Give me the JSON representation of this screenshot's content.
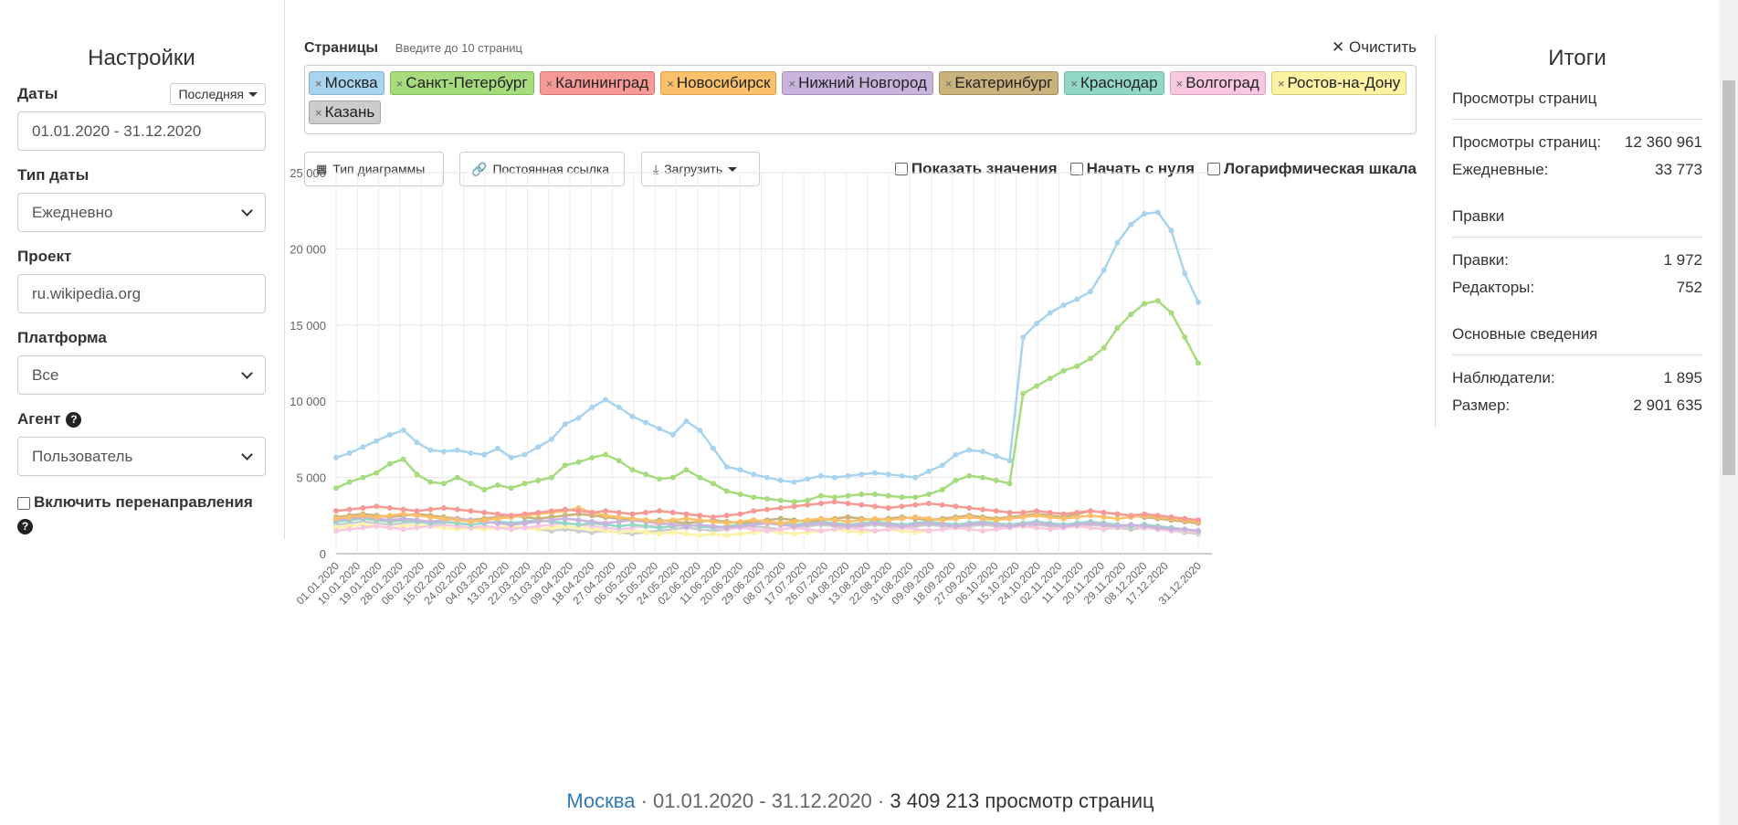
{
  "settings": {
    "title": "Настройки",
    "dates_label": "Даты",
    "dates_preset": "Последняя",
    "dates_value": "01.01.2020 - 31.12.2020",
    "date_type_label": "Тип даты",
    "date_type_value": "Ежедневно",
    "project_label": "Проект",
    "project_value": "ru.wikipedia.org",
    "platform_label": "Платформа",
    "platform_value": "Все",
    "agent_label": "Агент",
    "agent_value": "Пользователь",
    "redirects_label": "Включить перенаправления"
  },
  "pages": {
    "title": "Страницы",
    "hint": "Введите до 10 страниц",
    "clear_label": "Очистить",
    "chips": [
      {
        "label": "Москва",
        "color": "#a8d4ef",
        "border": "#7fb4d8"
      },
      {
        "label": "Санкт-Петербург",
        "color": "#a6dc7e",
        "border": "#7cbf52"
      },
      {
        "label": "Калининград",
        "color": "#f69a96",
        "border": "#d57571"
      },
      {
        "label": "Новосибирск",
        "color": "#fbc06a",
        "border": "#d9a047"
      },
      {
        "label": "Нижний Новгород",
        "color": "#c8b4dc",
        "border": "#a691bd"
      },
      {
        "label": "Екатеринбург",
        "color": "#c9b27c",
        "border": "#a58f5c"
      },
      {
        "label": "Краснодар",
        "color": "#93d7c7",
        "border": "#6fb9a7"
      },
      {
        "label": "Волгоград",
        "color": "#f7c8e0",
        "border": "#d9a3c0"
      },
      {
        "label": "Ростов-на-Дону",
        "color": "#fbf3a1",
        "border": "#d5cc78"
      },
      {
        "label": "Казань",
        "color": "#cccccc",
        "border": "#a6a6a6"
      }
    ]
  },
  "toolbar": {
    "chart_type": "Тип диаграммы",
    "permalink": "Постоянная ссылка",
    "download": "Загрузить",
    "show_values": "Показать значения",
    "begin_zero": "Начать с нуля",
    "log_scale": "Логарифмическая шкала"
  },
  "chart_data": {
    "type": "line",
    "ylim": [
      0,
      25000
    ],
    "y_ticks": [
      "0",
      "5 000",
      "10 000",
      "15 000",
      "20 000",
      "25 000"
    ],
    "x_ticks": [
      "01.01.2020",
      "10.01.2020",
      "19.01.2020",
      "28.01.2020",
      "06.02.2020",
      "15.02.2020",
      "24.02.2020",
      "04.03.2020",
      "13.03.2020",
      "22.03.2020",
      "31.03.2020",
      "09.04.2020",
      "18.04.2020",
      "27.04.2020",
      "06.05.2020",
      "15.05.2020",
      "24.05.2020",
      "02.06.2020",
      "11.06.2020",
      "20.06.2020",
      "29.06.2020",
      "08.07.2020",
      "17.07.2020",
      "26.07.2020",
      "04.08.2020",
      "13.08.2020",
      "22.08.2020",
      "31.08.2020",
      "09.09.2020",
      "18.09.2020",
      "27.09.2020",
      "06.10.2020",
      "15.10.2020",
      "24.10.2020",
      "02.11.2020",
      "11.11.2020",
      "20.11.2020",
      "29.11.2020",
      "08.12.2020",
      "17.12.2020",
      "31.12.2020"
    ],
    "x_tick_days": [
      0,
      9,
      18,
      27,
      36,
      45,
      54,
      63,
      72,
      81,
      90,
      99,
      108,
      117,
      126,
      135,
      144,
      153,
      162,
      171,
      180,
      189,
      198,
      207,
      216,
      225,
      234,
      243,
      252,
      261,
      270,
      279,
      288,
      297,
      306,
      315,
      324,
      333,
      342,
      351,
      365
    ],
    "series": [
      {
        "name": "Москва",
        "color": "#a8d4ef",
        "values": [
          6300,
          6600,
          7000,
          7400,
          7800,
          8100,
          7300,
          6800,
          6700,
          6800,
          6600,
          6500,
          6900,
          6300,
          6500,
          7000,
          7500,
          8500,
          8900,
          9600,
          10100,
          9600,
          9000,
          8600,
          8200,
          7800,
          8700,
          8100,
          6900,
          5700,
          5500,
          5200,
          5000,
          4800,
          4700,
          4900,
          5100,
          5000,
          5100,
          5200,
          5300,
          5200,
          5100,
          5000,
          5400,
          5800,
          6500,
          6800,
          6700,
          6400,
          6100,
          14200,
          15100,
          15800,
          16300,
          16700,
          17200,
          18600,
          20400,
          21600,
          22300,
          22400,
          21200,
          18400,
          16500
        ]
      },
      {
        "name": "Санкт-Петербург",
        "color": "#a6dc7e",
        "values": [
          4300,
          4700,
          5000,
          5300,
          5900,
          6200,
          5200,
          4700,
          4600,
          5000,
          4600,
          4200,
          4500,
          4300,
          4600,
          4800,
          5000,
          5800,
          6000,
          6300,
          6500,
          6100,
          5500,
          5200,
          4900,
          5000,
          5500,
          5000,
          4600,
          4100,
          3900,
          3700,
          3600,
          3500,
          3400,
          3500,
          3800,
          3700,
          3800,
          3900,
          3900,
          3800,
          3700,
          3700,
          3900,
          4200,
          4800,
          5100,
          5000,
          4800,
          4600,
          10500,
          11000,
          11500,
          12000,
          12300,
          12800,
          13500,
          14800,
          15700,
          16400,
          16600,
          15800,
          14200,
          12500
        ]
      },
      {
        "name": "Калининград",
        "color": "#f69a96",
        "values": [
          2800,
          2900,
          3000,
          3100,
          3000,
          2900,
          2800,
          2900,
          3000,
          2900,
          2800,
          2700,
          2600,
          2500,
          2600,
          2700,
          2800,
          2900,
          2800,
          2700,
          2800,
          2700,
          2600,
          2700,
          2800,
          2700,
          2600,
          2500,
          2400,
          2500,
          2600,
          2800,
          2900,
          3000,
          3100,
          3200,
          3300,
          3400,
          3300,
          3200,
          3100,
          3000,
          3100,
          3200,
          3300,
          3200,
          3100,
          3000,
          2900,
          2800,
          2700,
          2700,
          2800,
          2700,
          2600,
          2700,
          2800,
          2700,
          2600,
          2500,
          2600,
          2500,
          2400,
          2300,
          2200
        ]
      },
      {
        "name": "Новосибирск",
        "color": "#fbc06a",
        "values": [
          2300,
          2400,
          2500,
          2400,
          2500,
          2600,
          2500,
          2400,
          2300,
          2200,
          2100,
          2200,
          2300,
          2400,
          2500,
          2600,
          2700,
          2800,
          3000,
          2700,
          2500,
          2400,
          2300,
          2200,
          2100,
          2200,
          2300,
          2200,
          2100,
          2000,
          2100,
          2200,
          2100,
          2000,
          2100,
          2200,
          2300,
          2200,
          2100,
          2200,
          2300,
          2200,
          2300,
          2400,
          2300,
          2200,
          2300,
          2400,
          2300,
          2200,
          2300,
          2400,
          2500,
          2400,
          2300,
          2400,
          2500,
          2400,
          2300,
          2400,
          2500,
          2400,
          2300,
          2200,
          2100
        ]
      },
      {
        "name": "Нижний Новгород",
        "color": "#c8b4dc",
        "values": [
          2200,
          2300,
          2400,
          2300,
          2200,
          2300,
          2200,
          2100,
          2200,
          2300,
          2200,
          2100,
          2000,
          1900,
          2000,
          2100,
          2200,
          2300,
          2200,
          2100,
          2000,
          2100,
          2200,
          2100,
          2000,
          1900,
          1800,
          1900,
          1800,
          1700,
          1800,
          1900,
          2000,
          1900,
          1800,
          1900,
          2000,
          1900,
          1800,
          1900,
          2000,
          1900,
          1800,
          1900,
          2000,
          1900,
          1800,
          1900,
          2000,
          1900,
          1800,
          1900,
          2000,
          1900,
          1800,
          1900,
          2000,
          1900,
          1800,
          1900,
          1800,
          1700,
          1600,
          1600,
          1500
        ]
      },
      {
        "name": "Екатеринбург",
        "color": "#c9b27c",
        "values": [
          2400,
          2500,
          2600,
          2500,
          2400,
          2500,
          2600,
          2500,
          2400,
          2300,
          2200,
          2300,
          2400,
          2500,
          2400,
          2300,
          2400,
          2500,
          2600,
          2500,
          2400,
          2300,
          2200,
          2100,
          2200,
          2100,
          2000,
          2100,
          2200,
          2100,
          2000,
          2100,
          2200,
          2300,
          2200,
          2100,
          2200,
          2300,
          2400,
          2300,
          2200,
          2300,
          2400,
          2300,
          2200,
          2300,
          2400,
          2500,
          2400,
          2300,
          2400,
          2500,
          2600,
          2500,
          2400,
          2600,
          2800,
          2700,
          2600,
          2500,
          2400,
          2300,
          2200,
          2100,
          2000
        ]
      },
      {
        "name": "Краснодар",
        "color": "#93d7c7",
        "values": [
          2100,
          2200,
          2300,
          2200,
          2100,
          2200,
          2100,
          2000,
          2100,
          2000,
          1900,
          2000,
          2100,
          2000,
          2100,
          2200,
          2100,
          2000,
          1900,
          2000,
          1900,
          1800,
          1900,
          1800,
          1700,
          1800,
          1900,
          1800,
          1700,
          1800,
          1900,
          2000,
          2100,
          2000,
          1900,
          2000,
          2100,
          2000,
          1900,
          2000,
          2100,
          2000,
          1900,
          2000,
          2100,
          2000,
          1900,
          2000,
          2100,
          2000,
          1900,
          2000,
          2100,
          2000,
          1900,
          2000,
          2100,
          2000,
          1900,
          1800,
          1900,
          1800,
          1700,
          1600,
          1500
        ]
      },
      {
        "name": "Волгоград",
        "color": "#f7c8e0",
        "values": [
          1500,
          1600,
          1700,
          1800,
          1700,
          1600,
          1700,
          1800,
          1900,
          1800,
          1700,
          1800,
          1700,
          1600,
          1700,
          1800,
          1900,
          2000,
          1900,
          1800,
          1700,
          1600,
          1700,
          1800,
          1900,
          2000,
          1900,
          1800,
          1700,
          1600,
          1700,
          1600,
          1500,
          1600,
          1700,
          1600,
          1500,
          1600,
          1700,
          1600,
          1500,
          1600,
          1700,
          1600,
          1500,
          1600,
          1700,
          1600,
          1500,
          1600,
          1700,
          1800,
          1700,
          1600,
          1700,
          1800,
          1700,
          1600,
          1700,
          1800,
          1700,
          1600,
          1500,
          1500,
          1400
        ]
      },
      {
        "name": "Ростов-на-Дону",
        "color": "#fbf3a1",
        "values": [
          1700,
          1800,
          1900,
          1800,
          1700,
          1800,
          1900,
          1800,
          1700,
          1600,
          1700,
          1600,
          1700,
          1800,
          1700,
          1600,
          1700,
          1800,
          1700,
          1600,
          1500,
          1400,
          1500,
          1400,
          1300,
          1400,
          1300,
          1200,
          1300,
          1200,
          1300,
          1400,
          1500,
          1400,
          1300,
          1400,
          1500,
          1600,
          1500,
          1400,
          1500,
          1600,
          1500,
          1400,
          1500,
          1600,
          1700,
          1600,
          1500,
          1600,
          1700,
          1800,
          1700,
          1600,
          1700,
          1800,
          1700,
          1600,
          1700,
          1800,
          1700,
          1600,
          1500,
          1500,
          1400
        ]
      },
      {
        "name": "Казань",
        "color": "#cccccc",
        "values": [
          1900,
          2000,
          2100,
          2000,
          1900,
          2000,
          2100,
          2000,
          1900,
          1800,
          1700,
          1800,
          1700,
          1600,
          1700,
          1600,
          1500,
          1600,
          1500,
          1400,
          1500,
          1400,
          1300,
          1400,
          1500,
          1600,
          1700,
          1600,
          1500,
          1600,
          1700,
          1800,
          1700,
          1600,
          1700,
          1800,
          1900,
          1800,
          1700,
          1800,
          1900,
          1800,
          1700,
          1800,
          1900,
          1800,
          1700,
          1800,
          1900,
          1800,
          1700,
          1800,
          1900,
          1800,
          1700,
          1800,
          1900,
          1800,
          1700,
          1600,
          1700,
          1600,
          1500,
          1400,
          1300
        ]
      }
    ]
  },
  "footer": {
    "page": "Москва",
    "range": "01.01.2020 - 31.12.2020",
    "views": "3 409 213 просмотр страниц"
  },
  "totals": {
    "title": "Итоги",
    "pageviews_section": "Просмотры страниц",
    "pageviews_label": "Просмотры страниц:",
    "pageviews_value": "12 360 961",
    "daily_label": "Ежедневные:",
    "daily_value": "33 773",
    "edits_section": "Правки",
    "edits_label": "Правки:",
    "edits_value": "1 972",
    "editors_label": "Редакторы:",
    "editors_value": "752",
    "basic_section": "Основные сведения",
    "watchers_label": "Наблюдатели:",
    "watchers_value": "1 895",
    "size_label": "Размер:",
    "size_value": "2 901 635"
  }
}
